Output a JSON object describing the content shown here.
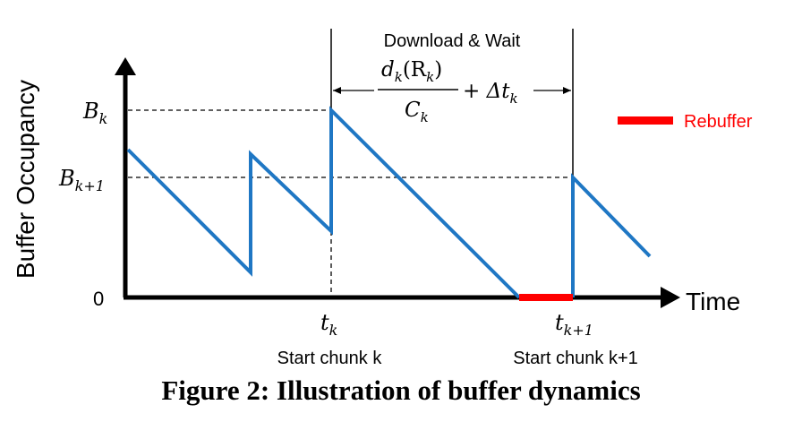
{
  "axes": {
    "y_label": "Buffer Occupancy",
    "x_label": "Time",
    "origin_label": "0"
  },
  "levels": {
    "b_k": "B",
    "b_k_sub": "k",
    "b_k1": "B",
    "b_k1_sub": "k+1"
  },
  "times": {
    "t_k": "t",
    "t_k_sub": "k",
    "t_k1": "t",
    "t_k1_sub": "k+1",
    "start_k": "Start chunk k",
    "start_k1": "Start chunk k+1"
  },
  "annotation": {
    "title": "Download & Wait",
    "numerator": "d",
    "numerator_sub": "k",
    "numerator_arg": "(R",
    "numerator_arg_sub": "k",
    "numerator_close": ")",
    "denominator": "C",
    "denominator_sub": "k",
    "plus_delta": "+ Δt",
    "plus_delta_sub": "k"
  },
  "legend": {
    "rebuffer_label": "Rebuffer"
  },
  "colors": {
    "buffer_line": "#1f77c4",
    "rebuffer": "#ff0000",
    "axis": "#000000",
    "legend_text": "#ff0000"
  },
  "caption": "Figure 2: Illustration of buffer dynamics"
}
